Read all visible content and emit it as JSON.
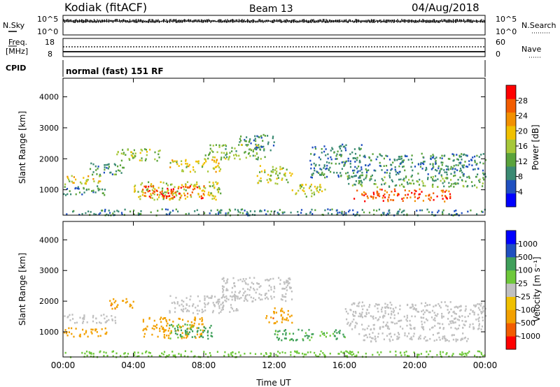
{
  "header": {
    "station": "Kodiak (fitACF)",
    "beam": "Beam 13",
    "date": "04/Aug/2018"
  },
  "summary_panels": {
    "nsky_label": "N.Sky",
    "nsky_ticks": [
      "10^5",
      "10^0"
    ],
    "nsearch_label": "N.Search",
    "nsearch_ticks": [
      "10^5",
      "10^0"
    ],
    "freq_label": "Freq.",
    "freq_unit": "[MHz]",
    "freq_ticks": [
      "18",
      "8"
    ],
    "nave_label": "Nave",
    "nave_ticks": [
      "60",
      "0"
    ],
    "cpid_label": "CPID",
    "cpid_value": "normal (fast) 151 RF"
  },
  "chart_data": [
    {
      "type": "heatmap",
      "name": "power",
      "ylabel": "Slant Range [km]",
      "xlabel": "Time UT",
      "x_ticks": [
        "00:00",
        "04:00",
        "08:00",
        "12:00",
        "16:00",
        "20:00",
        "00:00"
      ],
      "x_range_hours": [
        0,
        24
      ],
      "y_ticks": [
        1000,
        2000,
        3000,
        4000
      ],
      "ylim": [
        180,
        4600
      ],
      "colorbar": {
        "label": "Power [dB]",
        "ticks": [
          "28",
          "24",
          "20",
          "16",
          "12",
          "8",
          "4"
        ],
        "range": [
          0,
          30
        ]
      },
      "regions": [
        {
          "t": [
            0.0,
            2.2
          ],
          "r": [
            1200,
            1500
          ],
          "v": 17
        },
        {
          "t": [
            0.0,
            2.5
          ],
          "r": [
            850,
            1150
          ],
          "v": 9
        },
        {
          "t": [
            1.5,
            3.5
          ],
          "r": [
            1500,
            1900
          ],
          "v": 10
        },
        {
          "t": [
            3.0,
            5.5
          ],
          "r": [
            1950,
            2350
          ],
          "v": 14
        },
        {
          "t": [
            4.0,
            9.0
          ],
          "r": [
            700,
            1300
          ],
          "v": 16
        },
        {
          "t": [
            4.5,
            8.0
          ],
          "r": [
            750,
            1150
          ],
          "v": 26
        },
        {
          "t": [
            6.0,
            9.0
          ],
          "r": [
            1600,
            2000
          ],
          "v": 17
        },
        {
          "t": [
            8.0,
            11.5
          ],
          "r": [
            2000,
            2500
          ],
          "v": 13
        },
        {
          "t": [
            10.0,
            12.0
          ],
          "r": [
            2300,
            2800
          ],
          "v": 9
        },
        {
          "t": [
            11.0,
            13.0
          ],
          "r": [
            1200,
            1800
          ],
          "v": 15
        },
        {
          "t": [
            13.0,
            15.0
          ],
          "r": [
            800,
            1200
          ],
          "v": 16
        },
        {
          "t": [
            14.0,
            17.0
          ],
          "r": [
            1400,
            2500
          ],
          "v": 8
        },
        {
          "t": [
            16.5,
            22.0
          ],
          "r": [
            650,
            1050
          ],
          "v": 25
        },
        {
          "t": [
            16.0,
            24.0
          ],
          "r": [
            1100,
            1500
          ],
          "v": 11
        },
        {
          "t": [
            17.0,
            24.0
          ],
          "r": [
            1500,
            2200
          ],
          "v": 8
        },
        {
          "t": [
            0.0,
            24.0
          ],
          "r": [
            200,
            400
          ],
          "v": 8
        }
      ]
    },
    {
      "type": "heatmap",
      "name": "velocity",
      "ylabel": "Slant Range [km]",
      "xlabel": "Time UT",
      "x_ticks": [
        "00:00",
        "04:00",
        "08:00",
        "12:00",
        "16:00",
        "20:00",
        "00:00"
      ],
      "x_range_hours": [
        0,
        24
      ],
      "y_ticks": [
        1000,
        2000,
        3000,
        4000
      ],
      "ylim": [
        180,
        4600
      ],
      "colorbar": {
        "label": "Velocity [m s⁻¹]",
        "ticks": [
          "1000",
          "500",
          "100",
          "25",
          "-25",
          "-100",
          "-500",
          "-1000"
        ],
        "range": [
          -1000,
          1000
        ]
      },
      "regions": [
        {
          "t": [
            0.0,
            3.0
          ],
          "r": [
            1300,
            1600
          ],
          "v": 0
        },
        {
          "t": [
            0.0,
            2.5
          ],
          "r": [
            850,
            1150
          ],
          "v": -200
        },
        {
          "t": [
            2.5,
            4.0
          ],
          "r": [
            1750,
            2100
          ],
          "v": -400
        },
        {
          "t": [
            4.5,
            8.0
          ],
          "r": [
            800,
            1500
          ],
          "v": -300
        },
        {
          "t": [
            6.0,
            8.5
          ],
          "r": [
            800,
            1300
          ],
          "v": 120
        },
        {
          "t": [
            6.0,
            10.0
          ],
          "r": [
            1600,
            2200
          ],
          "v": 0
        },
        {
          "t": [
            9.0,
            13.0
          ],
          "r": [
            2000,
            2800
          ],
          "v": 0
        },
        {
          "t": [
            11.5,
            13.0
          ],
          "r": [
            1300,
            1800
          ],
          "v": -400
        },
        {
          "t": [
            12.0,
            16.0
          ],
          "r": [
            750,
            1100
          ],
          "v": 120
        },
        {
          "t": [
            16.5,
            23.0
          ],
          "r": [
            700,
            1000
          ],
          "v": 0
        },
        {
          "t": [
            16.0,
            24.0
          ],
          "r": [
            1100,
            2000
          ],
          "v": 0
        },
        {
          "t": [
            0.0,
            24.0
          ],
          "r": [
            200,
            400
          ],
          "v": 60
        }
      ]
    }
  ],
  "colors": {
    "power_scale": [
      "#0000ff",
      "#2050c0",
      "#3b8a73",
      "#5aa33c",
      "#a7c83a",
      "#f0c000",
      "#f29000",
      "#f25c00",
      "#ff0000"
    ],
    "velocity_scale": [
      "#ff0000",
      "#f25c00",
      "#f2a000",
      "#f0c000",
      "#c0c0c0",
      "#6ec83a",
      "#3f9f5a",
      "#2050c0",
      "#0000ff"
    ]
  }
}
